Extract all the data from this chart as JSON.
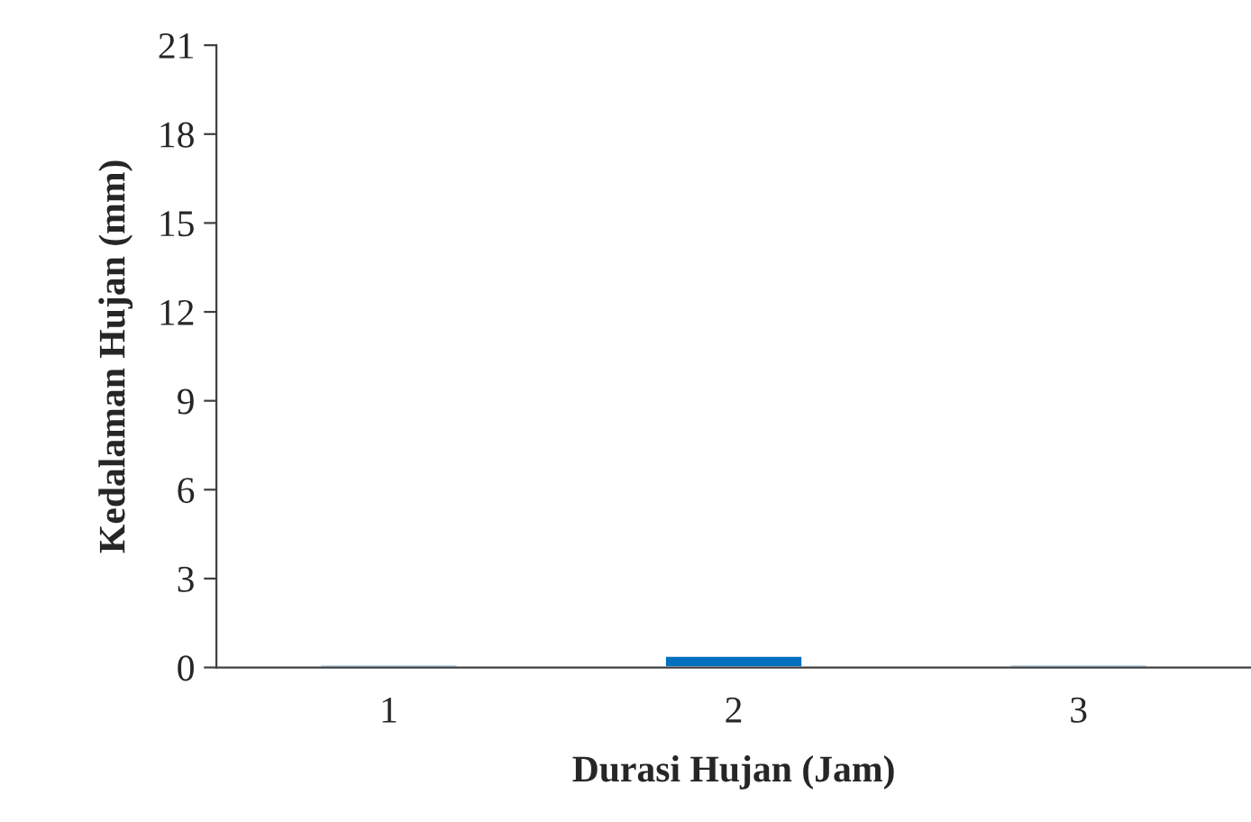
{
  "chart_data": {
    "type": "bar",
    "xlabel": "Durasi Hujan (Jam)",
    "ylabel": "Kedalaman Hujan (mm)",
    "categories": [
      "1",
      "2",
      "3"
    ],
    "values": [
      0.1,
      0.4,
      0.1
    ],
    "color": "#0070c0",
    "ylim": [
      0,
      21
    ],
    "yticks": [
      0,
      3,
      6,
      9,
      12,
      15,
      18,
      21
    ],
    "grid": false,
    "legend": false
  }
}
